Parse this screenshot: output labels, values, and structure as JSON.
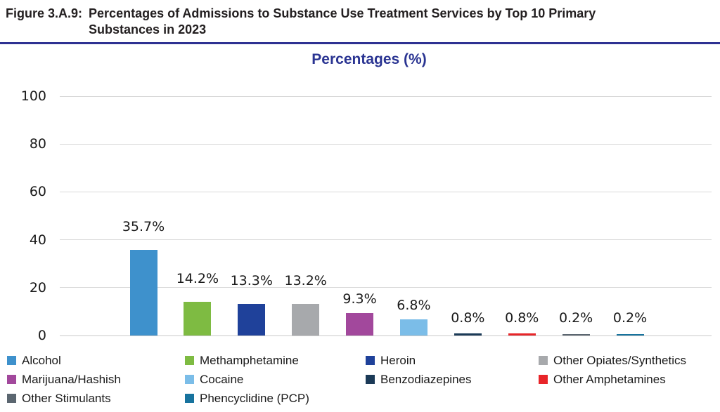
{
  "figure": {
    "label": "Figure 3.A.9:",
    "title_line1": "Percentages of Admissions to Substance Use Treatment Services by Top 10 Primary",
    "title_line2": "Substances in 2023"
  },
  "chart_data": {
    "type": "bar",
    "title": "Percentages (%)",
    "categories": [
      "Alcohol",
      "Methamphetamine",
      "Heroin",
      "Other Opiates/Synthetics",
      "Marijuana/Hashish",
      "Cocaine",
      "Benzodiazepines",
      "Other Amphetamines",
      "Other Stimulants",
      "Phencyclidine (PCP)"
    ],
    "values": [
      35.7,
      14.2,
      13.3,
      13.2,
      9.3,
      6.8,
      0.8,
      0.8,
      0.2,
      0.2
    ],
    "labels": [
      "35.7%",
      "14.2%",
      "13.3%",
      "13.2%",
      "9.3%",
      "6.8%",
      "0.8%",
      "0.8%",
      "0.2%",
      "0.2%"
    ],
    "colors": [
      "#3E91CC",
      "#7EBB42",
      "#1F419A",
      "#A7A9AC",
      "#A2489C",
      "#7BBDE8",
      "#1B3A57",
      "#E82529",
      "#5B6670",
      "#17739E"
    ],
    "ylim": [
      0,
      100
    ],
    "yticks": [
      0,
      20,
      40,
      60,
      80,
      100
    ],
    "xlabel": "",
    "ylabel": "",
    "grid": true,
    "legend_position": "bottom",
    "title_color": "#2A3492",
    "header_rule_color": "#2E3192",
    "gridline_color": "#D9D9D9"
  }
}
